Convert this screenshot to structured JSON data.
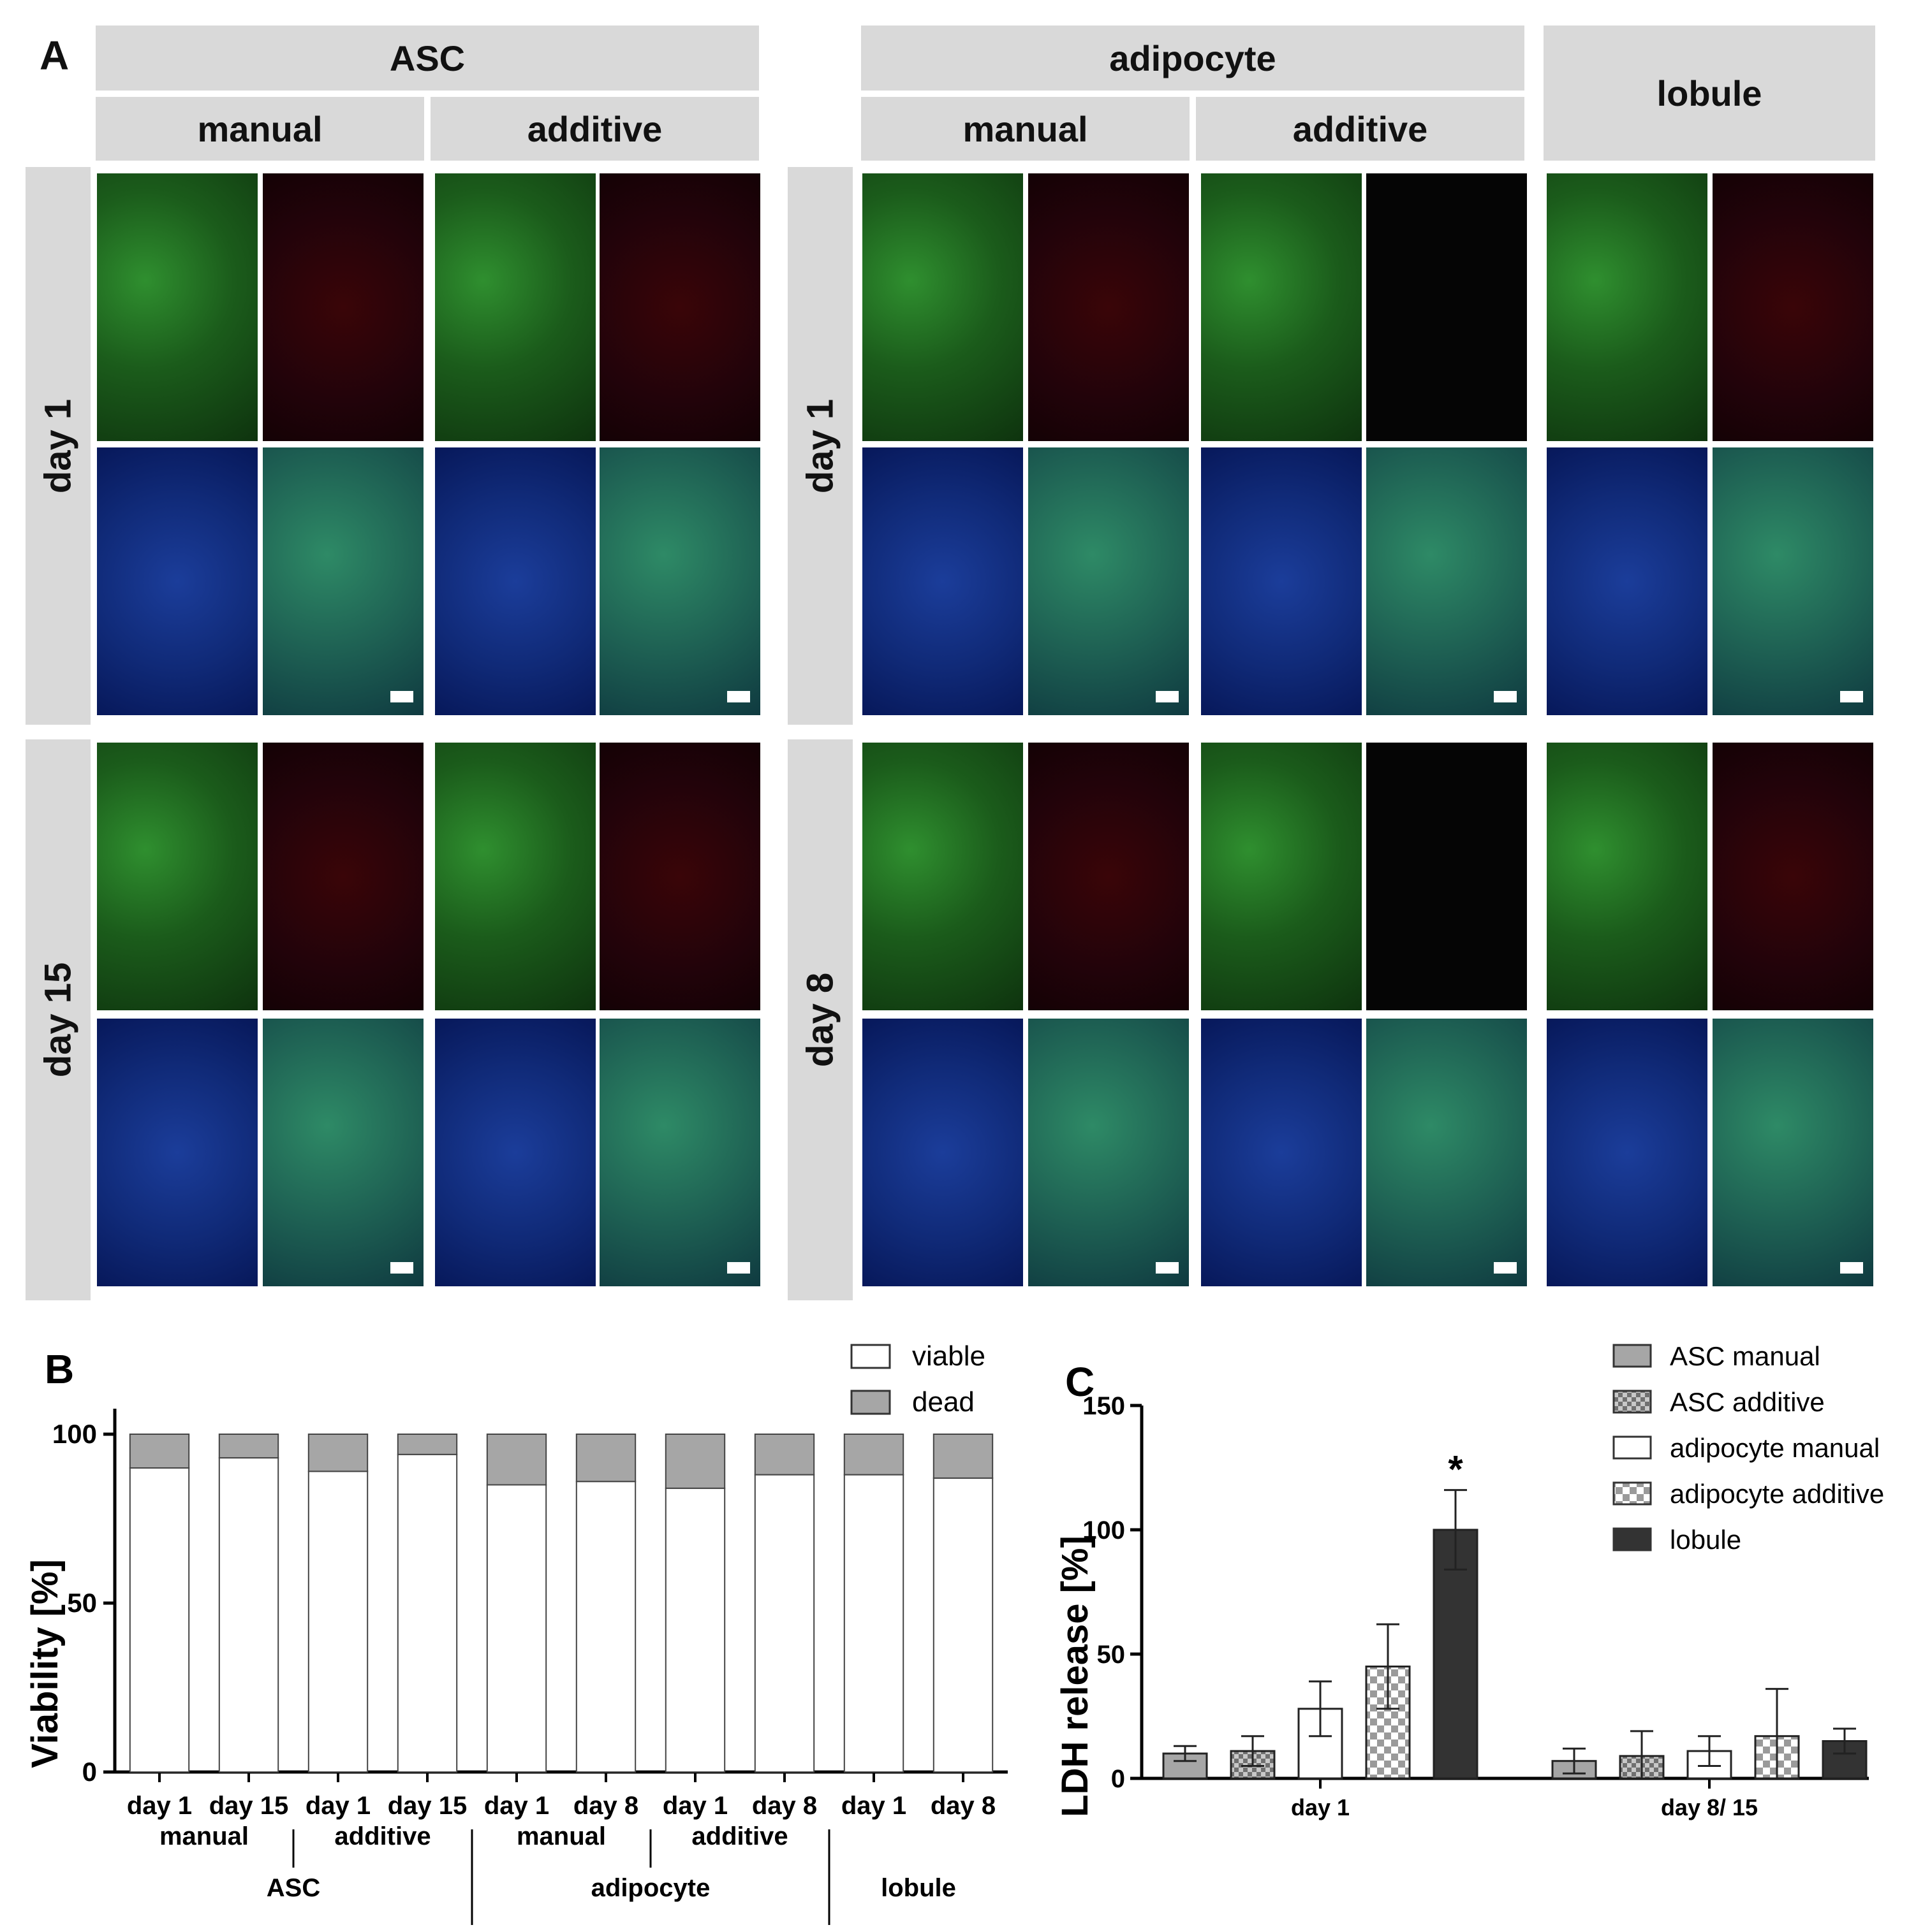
{
  "panel_a": {
    "letter": "A",
    "groups": [
      {
        "name": "ASC",
        "sub": [
          "manual",
          "additive"
        ]
      },
      {
        "name": "adipocyte",
        "sub": [
          "manual",
          "additive"
        ]
      },
      {
        "name": "lobule"
      }
    ],
    "rows_asc": [
      "day 1",
      "day 15"
    ],
    "rows_adipocyte": [
      "day 1",
      "day 8"
    ],
    "channel_colors": {
      "live": "#2a8a2a",
      "dead": "#2a0408",
      "nuclei": "#12308a",
      "merge": "#236e5c"
    }
  },
  "chart_data": [
    {
      "panel": "B",
      "type": "bar",
      "stacked": true,
      "ylabel": "Viability [%]",
      "ylim": [
        0,
        100
      ],
      "yticks": [
        0,
        50,
        100
      ],
      "categories": [
        "day 1",
        "day 15",
        "day 1",
        "day 15",
        "day 1",
        "day 8",
        "day 1",
        "day 8",
        "day 1",
        "day 8"
      ],
      "series": [
        {
          "name": "viable",
          "color": "#ffffff",
          "values": [
            90,
            93,
            89,
            94,
            85,
            86,
            84,
            88,
            88,
            87
          ]
        },
        {
          "name": "dead",
          "color": "#a6a6a6",
          "values": [
            10,
            7,
            11,
            6,
            15,
            14,
            16,
            12,
            12,
            13
          ]
        }
      ],
      "group_labels_level1": [
        "manual",
        "additive",
        "manual",
        "additive"
      ],
      "group_labels_level2": [
        "ASC",
        "adipocyte",
        "lobule"
      ],
      "legend_position": "top-right"
    },
    {
      "panel": "C",
      "type": "bar",
      "ylabel": "LDH release [%]",
      "ylim": [
        0,
        150
      ],
      "yticks": [
        0,
        50,
        100,
        150
      ],
      "categories": [
        "day 1",
        "day 8/ 15"
      ],
      "series": [
        {
          "name": "ASC manual",
          "color": "#a6a6a6",
          "pattern": "solid",
          "values": [
            10,
            7
          ],
          "errors": [
            3,
            5
          ]
        },
        {
          "name": "ASC additive",
          "color": "#9a9a9a",
          "pattern": "checker-fine",
          "values": [
            11,
            9
          ],
          "errors": [
            6,
            10
          ]
        },
        {
          "name": "adipocyte manual",
          "color": "#ffffff",
          "pattern": "solid",
          "values": [
            28,
            11
          ],
          "errors": [
            11,
            6
          ]
        },
        {
          "name": "adipocyte additive",
          "color": "#d0d0d0",
          "pattern": "checker",
          "values": [
            45,
            17
          ],
          "errors": [
            17,
            19
          ]
        },
        {
          "name": "lobule",
          "color": "#333333",
          "pattern": "solid",
          "values": [
            100,
            15
          ],
          "errors": [
            16,
            5
          ]
        }
      ],
      "annotation": "*",
      "legend_position": "top-right"
    }
  ]
}
